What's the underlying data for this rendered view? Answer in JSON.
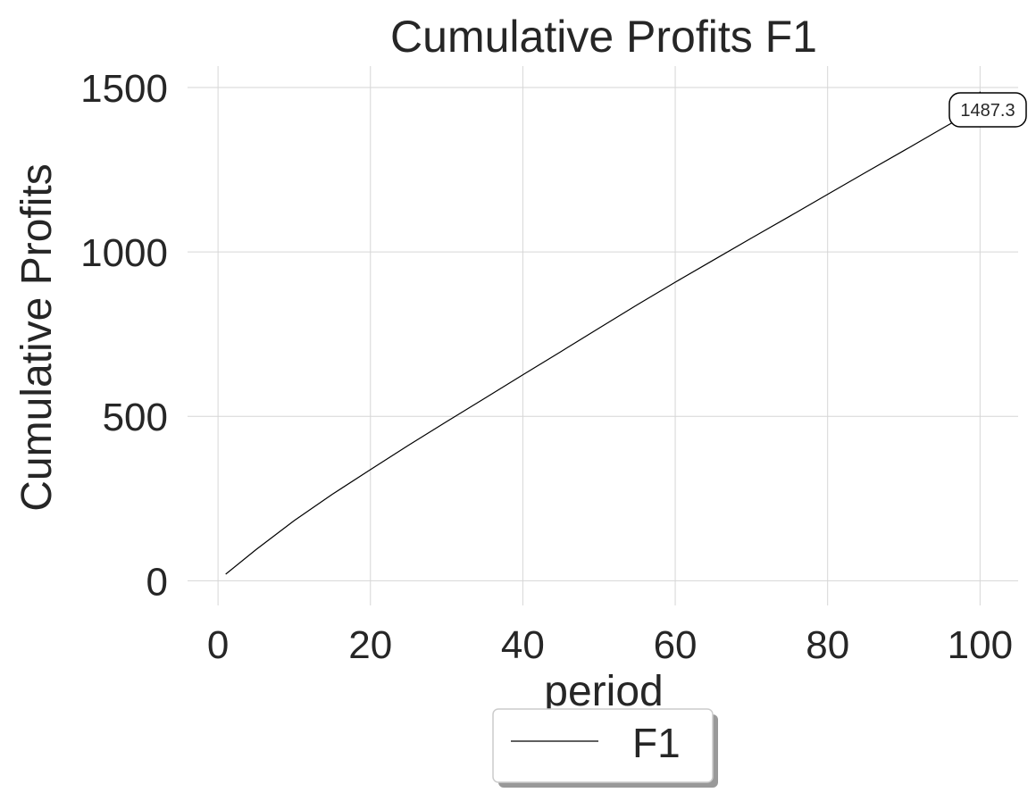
{
  "chart_data": {
    "type": "line",
    "title": "Cumulative Profits F1",
    "xlabel": "period",
    "ylabel": "Cumulative Profits",
    "xlim": [
      -4,
      105
    ],
    "ylim": [
      -75,
      1565
    ],
    "xticks": [
      0,
      20,
      40,
      60,
      80,
      100
    ],
    "yticks": [
      0,
      500,
      1000,
      1500
    ],
    "xtick_labels": [
      "0",
      "20",
      "40",
      "60",
      "80",
      "100"
    ],
    "ytick_labels": [
      "0",
      "500",
      "1000",
      "1500"
    ],
    "grid": true,
    "legend_position": "bottom-center",
    "series": [
      {
        "name": "F1",
        "color": "#000000",
        "x": [
          1,
          5,
          10,
          15,
          20,
          25,
          30,
          35,
          40,
          45,
          50,
          55,
          60,
          65,
          70,
          75,
          80,
          85,
          90,
          95,
          100
        ],
        "y": [
          20,
          95,
          183,
          263,
          338,
          412,
          484,
          555,
          626,
          697,
          768,
          839,
          908,
          975,
          1042,
          1108,
          1175,
          1242,
          1308,
          1375,
          1441
        ]
      }
    ],
    "annotation": {
      "text": "1487.3",
      "x": 100,
      "y": 1487.3
    }
  }
}
